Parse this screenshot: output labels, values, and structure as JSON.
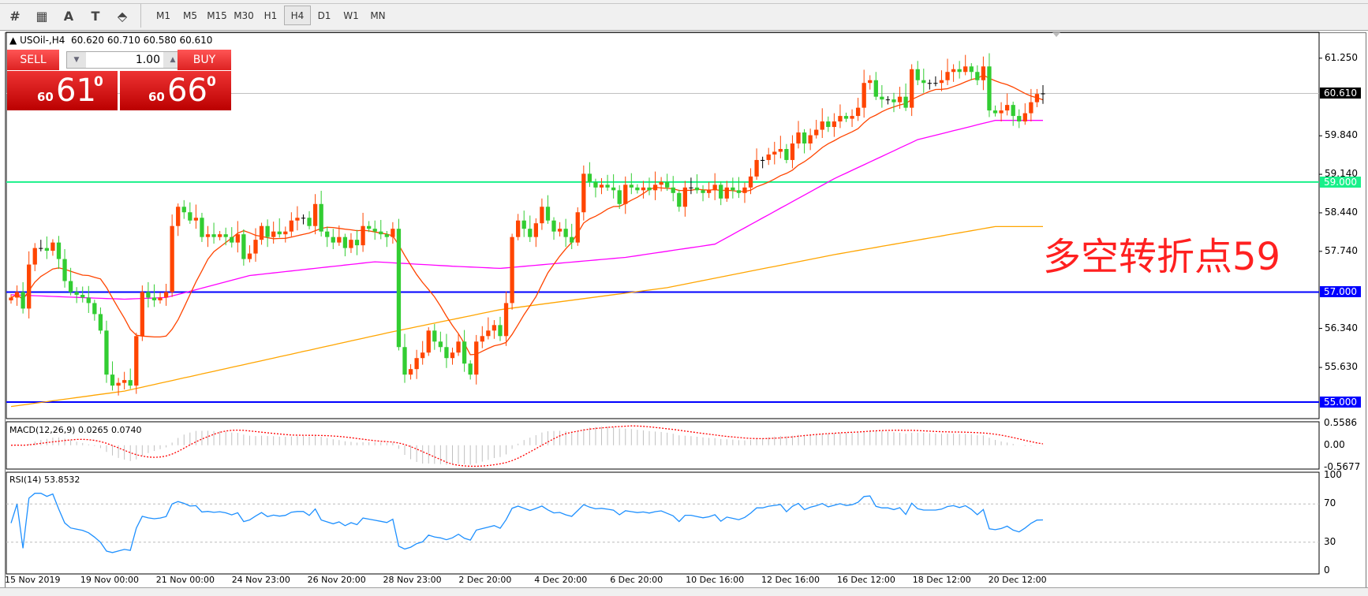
{
  "toolbar": {
    "icons": [
      "elliott-wave-icon",
      "fibonacci-icon",
      "text-icon",
      "text-label-icon",
      "arrows-icon"
    ],
    "icon_glyphs": [
      "#",
      "▦",
      "A",
      "T",
      "⬘"
    ],
    "timeframes": [
      "M1",
      "M5",
      "M15",
      "M30",
      "H1",
      "H4",
      "D1",
      "W1",
      "MN"
    ],
    "active_timeframe": "H4"
  },
  "chart_header": {
    "symbol": "USOil-,H4",
    "ohlc": "60.620 60.710 60.580 60.610"
  },
  "trade_panel": {
    "sell_label": "SELL",
    "buy_label": "BUY",
    "lot": "1.00",
    "sell_prefix": "60",
    "sell_big": "61",
    "sell_sup": "0",
    "buy_prefix": "60",
    "buy_big": "66",
    "buy_sup": "0"
  },
  "annotation": "多空转折点59",
  "colors": {
    "up": "#ff4500",
    "down": "#32cd32",
    "ma_fast": "#ff4500",
    "ma_mid": "#ff00ff",
    "ma_slow": "#ffa500",
    "level_59": "#19f08a",
    "level_blue": "#0000ff",
    "rsi": "#1e90ff",
    "macd_signal": "#ff0000"
  },
  "chart_data": [
    {
      "type": "candlestick",
      "price_ticks": [
        "61.250",
        "59.840",
        "59.140",
        "58.440",
        "57.740",
        "56.340",
        "55.630"
      ],
      "ylim": [
        54.7,
        61.72
      ],
      "current_price": "60.610",
      "levels": [
        {
          "value": 59.0,
          "label": "59.000",
          "color": "#19f08a"
        },
        {
          "value": 57.0,
          "label": "57.000",
          "color": "#0000ff"
        },
        {
          "value": 55.0,
          "label": "55.000",
          "color": "#0000ff"
        }
      ],
      "x_labels": [
        "15 Nov 2019",
        "19 Nov 00:00",
        "21 Nov 00:00",
        "24 Nov 23:00",
        "26 Nov 20:00",
        "28 Nov 23:00",
        "2 Dec 20:00",
        "4 Dec 20:00",
        "6 Dec 20:00",
        "10 Dec 16:00",
        "12 Dec 16:00",
        "16 Dec 12:00",
        "18 Dec 12:00",
        "20 Dec 12:00"
      ],
      "closes": [
        56.9,
        57.0,
        56.7,
        57.5,
        57.8,
        57.8,
        57.75,
        57.9,
        57.6,
        57.2,
        57.0,
        56.95,
        56.9,
        56.8,
        56.6,
        56.3,
        55.5,
        55.3,
        55.35,
        55.4,
        55.3,
        56.2,
        57.0,
        56.9,
        56.85,
        56.9,
        57.0,
        58.2,
        58.55,
        58.45,
        58.3,
        58.35,
        58.0,
        58.05,
        58.0,
        58.05,
        58.0,
        57.9,
        58.05,
        57.6,
        57.7,
        57.95,
        58.2,
        58.0,
        58.1,
        58.05,
        58.1,
        58.3,
        58.35,
        58.35,
        58.2,
        58.6,
        58.1,
        58.0,
        57.9,
        58.0,
        57.8,
        57.95,
        57.85,
        58.2,
        58.15,
        58.1,
        58.05,
        58.0,
        58.15,
        56.0,
        55.5,
        55.6,
        55.8,
        55.9,
        56.3,
        56.1,
        56.0,
        55.8,
        55.9,
        56.1,
        55.7,
        55.5,
        56.1,
        56.2,
        56.3,
        56.4,
        56.2,
        56.8,
        58.0,
        58.3,
        58.15,
        58.0,
        58.25,
        58.55,
        58.3,
        58.1,
        58.15,
        58.0,
        57.9,
        58.45,
        59.15,
        59.0,
        58.9,
        58.95,
        58.9,
        58.85,
        58.6,
        58.95,
        58.9,
        58.85,
        58.9,
        58.85,
        58.95,
        59.0,
        58.9,
        58.8,
        58.55,
        58.9,
        58.9,
        58.85,
        58.8,
        58.85,
        58.95,
        58.7,
        58.9,
        58.85,
        58.8,
        58.9,
        59.1,
        59.4,
        59.4,
        59.5,
        59.55,
        59.6,
        59.4,
        59.7,
        59.9,
        59.7,
        59.85,
        59.95,
        60.1,
        60.0,
        60.1,
        60.2,
        60.15,
        60.2,
        60.35,
        60.8,
        60.85,
        60.55,
        60.5,
        60.5,
        60.45,
        60.55,
        60.35,
        61.05,
        60.85,
        60.8,
        60.8,
        60.8,
        60.85,
        61.0,
        61.05,
        61.0,
        61.1,
        61.0,
        60.85,
        61.1,
        60.3,
        60.25,
        60.3,
        60.4,
        60.2,
        60.1,
        60.25,
        60.45,
        60.6,
        60.61
      ],
      "ma_mid_anchors": [
        [
          0,
          56.95
        ],
        [
          19,
          56.87
        ],
        [
          26,
          56.9
        ],
        [
          40,
          57.3
        ],
        [
          61,
          57.55
        ],
        [
          74,
          57.47
        ],
        [
          82,
          57.43
        ],
        [
          103,
          57.63
        ],
        [
          118,
          57.87
        ],
        [
          138,
          59.06
        ],
        [
          152,
          59.77
        ],
        [
          165,
          60.12
        ]
      ],
      "ma_slow_anchors": [
        [
          0,
          54.92
        ],
        [
          19,
          55.2
        ],
        [
          64,
          56.28
        ],
        [
          82,
          56.68
        ],
        [
          110,
          57.08
        ],
        [
          138,
          57.68
        ],
        [
          165,
          58.19
        ]
      ]
    },
    {
      "type": "line",
      "indicator": "MACD(12,26,9)",
      "label": "MACD(12,26,9) 0.0265 0.0740",
      "ticks": [
        "0.5586",
        "0.00",
        "-0.5677"
      ],
      "ylim": [
        -0.5677,
        0.5586
      ]
    },
    {
      "type": "line",
      "indicator": "RSI(14)",
      "label": "RSI(14) 53.8532",
      "ticks": [
        "100",
        "70",
        "30",
        "0"
      ],
      "ylim": [
        0,
        100
      ],
      "levels": [
        70,
        30
      ]
    }
  ]
}
